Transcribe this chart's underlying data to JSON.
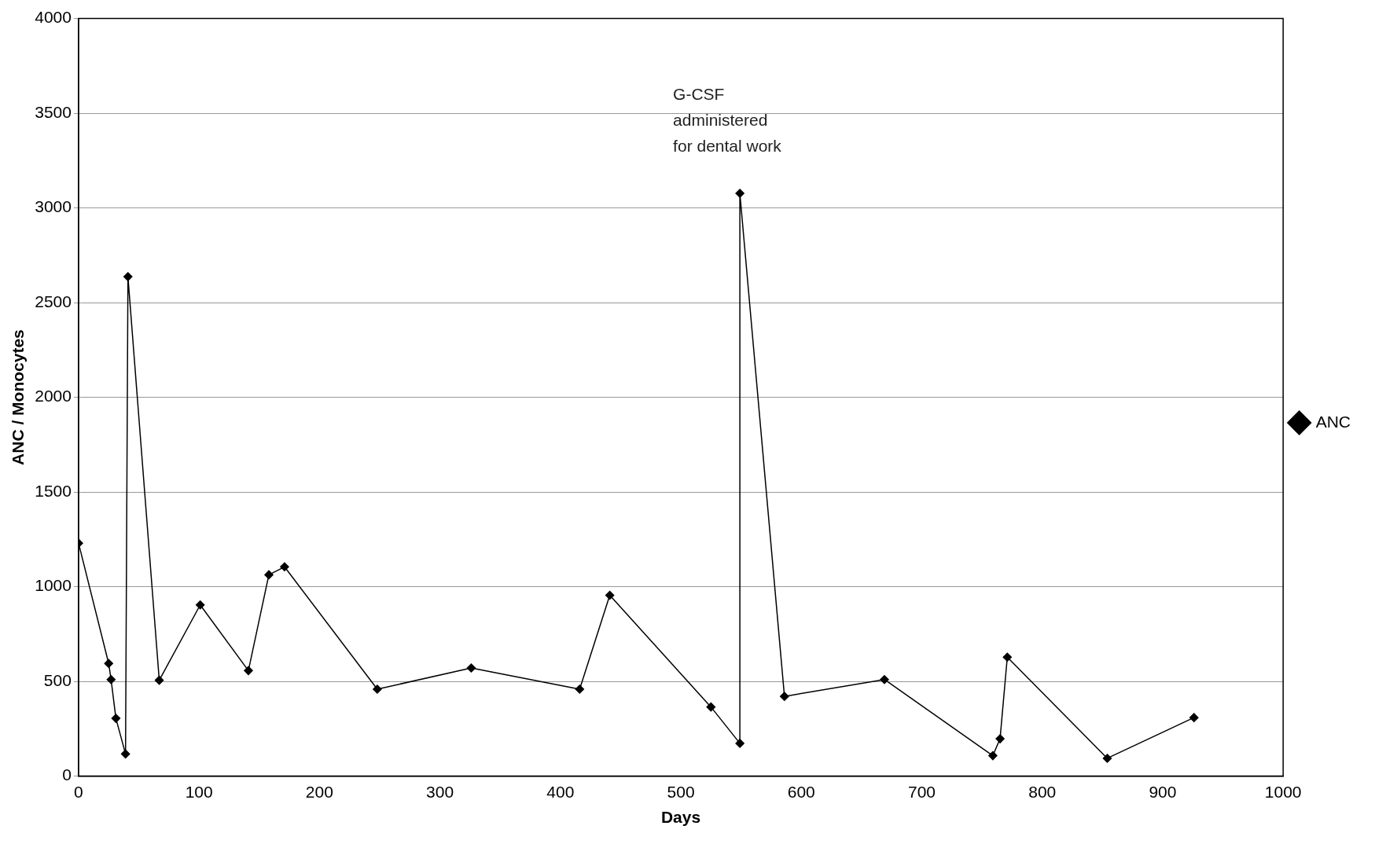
{
  "chart_data": {
    "type": "line",
    "xlabel": "Days",
    "ylabel": "ANC / Monocytes",
    "x": [
      0,
      25,
      27,
      31,
      39,
      41,
      67,
      101,
      141,
      158,
      171,
      248,
      326,
      416,
      441,
      525,
      549,
      549,
      586,
      669,
      759,
      765,
      771,
      854,
      926
    ],
    "series": [
      {
        "name": "ANC",
        "color": "#000000",
        "values": [
          1230,
          595,
          510,
          305,
          117,
          2637,
          506,
          904,
          557,
          1063,
          1105,
          459,
          571,
          459,
          955,
          365,
          173,
          3077,
          421,
          510,
          108,
          197,
          628,
          94,
          309
        ]
      }
    ],
    "xlim": [
      0,
      1000
    ],
    "xticks": [
      0,
      100,
      200,
      300,
      400,
      500,
      600,
      700,
      800,
      900,
      1000
    ],
    "ylim": [
      0,
      4000
    ],
    "yticks": [
      0,
      500,
      1000,
      1500,
      2000,
      2500,
      3000,
      3500,
      4000
    ],
    "grid": "y",
    "legend": "right",
    "marker": "diamond",
    "line_style": "solid",
    "annotations": [
      {
        "text": "G-CSF\nadministered\nfor dental work",
        "x": 549,
        "y": 3077
      }
    ]
  }
}
